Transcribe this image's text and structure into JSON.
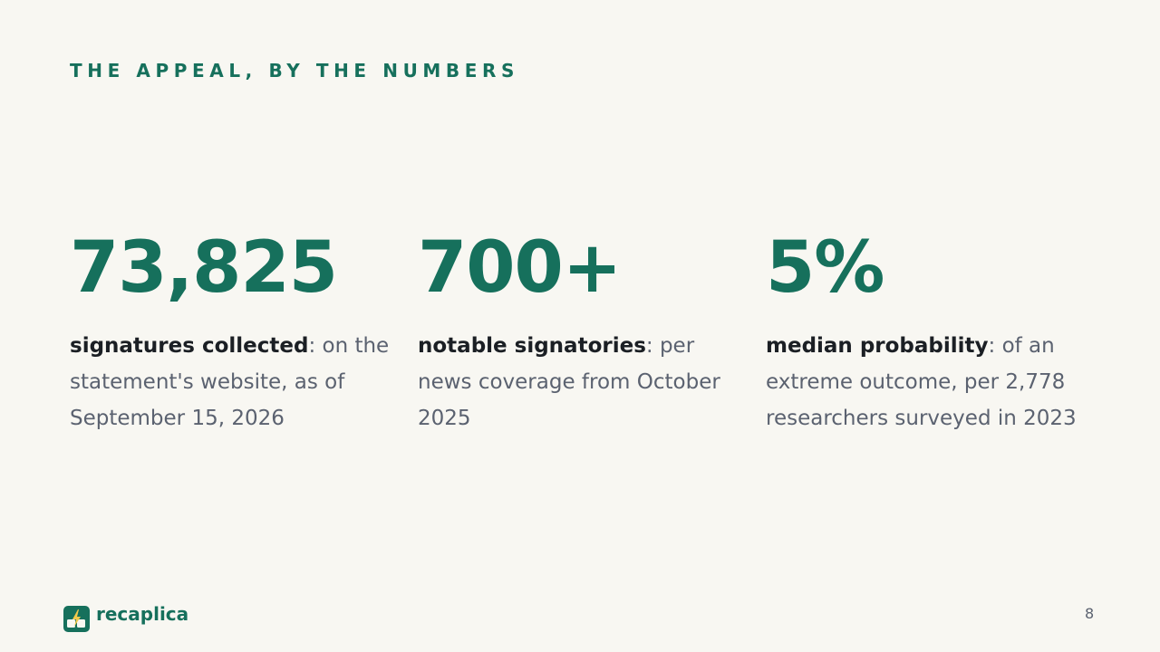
{
  "header": {
    "title": "THE APPEAL, BY THE NUMBERS"
  },
  "stats": [
    {
      "value": "73,825",
      "label": "signatures collected",
      "description": ": on the statement's website, as of September 15, 2026"
    },
    {
      "value": "700+",
      "label": "notable signatories",
      "description": ": per news coverage from October 2025"
    },
    {
      "value": "5%",
      "label": "median probability",
      "description": ": of an extreme outcome, per 2,778 researchers surveyed in 2023"
    }
  ],
  "footer": {
    "brand": "recaplica",
    "page_number": 8
  }
}
